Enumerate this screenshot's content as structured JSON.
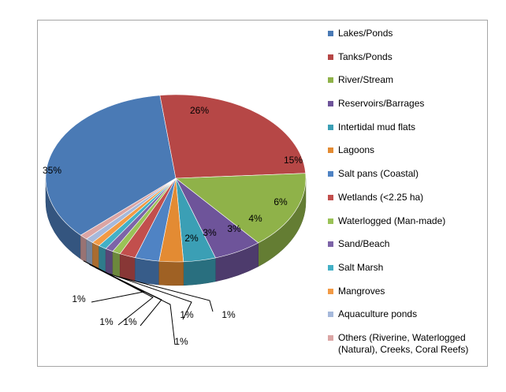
{
  "chart_data": {
    "type": "pie",
    "title": "",
    "legend_position": "right",
    "slices": [
      {
        "name": "Lakes/Ponds",
        "value": 35,
        "label": "35%",
        "color": "#4a7ab5"
      },
      {
        "name": "Tanks/Ponds",
        "value": 26,
        "label": "26%",
        "color": "#b64746"
      },
      {
        "name": "River/Stream",
        "value": 15,
        "label": "15%",
        "color": "#8fb249"
      },
      {
        "name": "Reservoirs/Barrages",
        "value": 6,
        "label": "6%",
        "color": "#6e549a"
      },
      {
        "name": "Intertidal mud flats",
        "value": 4,
        "label": "4%",
        "color": "#3b9fb5"
      },
      {
        "name": "Lagoons",
        "value": 3,
        "label": "3%",
        "color": "#e38b33"
      },
      {
        "name": "Salt pans (Coastal)",
        "value": 3,
        "label": "3%",
        "color": "#4f83c4"
      },
      {
        "name": "Wetlands (<2.25 ha)",
        "value": 2,
        "label": "2%",
        "color": "#c24f4d"
      },
      {
        "name": "Waterlogged (Man-made)",
        "value": 1,
        "label": "1%",
        "color": "#9ac257"
      },
      {
        "name": "Sand/Beach",
        "value": 1,
        "label": "1%",
        "color": "#7d64a8"
      },
      {
        "name": "Salt Marsh",
        "value": 1,
        "label": "1%",
        "color": "#43b0c6"
      },
      {
        "name": "Mangroves",
        "value": 1,
        "label": "1%",
        "color": "#f29a45"
      },
      {
        "name": "Aquaculture ponds",
        "value": 1,
        "label": "1%",
        "color": "#a6b9db"
      },
      {
        "name": "Others (Riverine, Waterlogged (Natural), Creeks, Coral Reefs)",
        "value": 1,
        "label": "1%",
        "color": "#dba5a4"
      }
    ]
  }
}
